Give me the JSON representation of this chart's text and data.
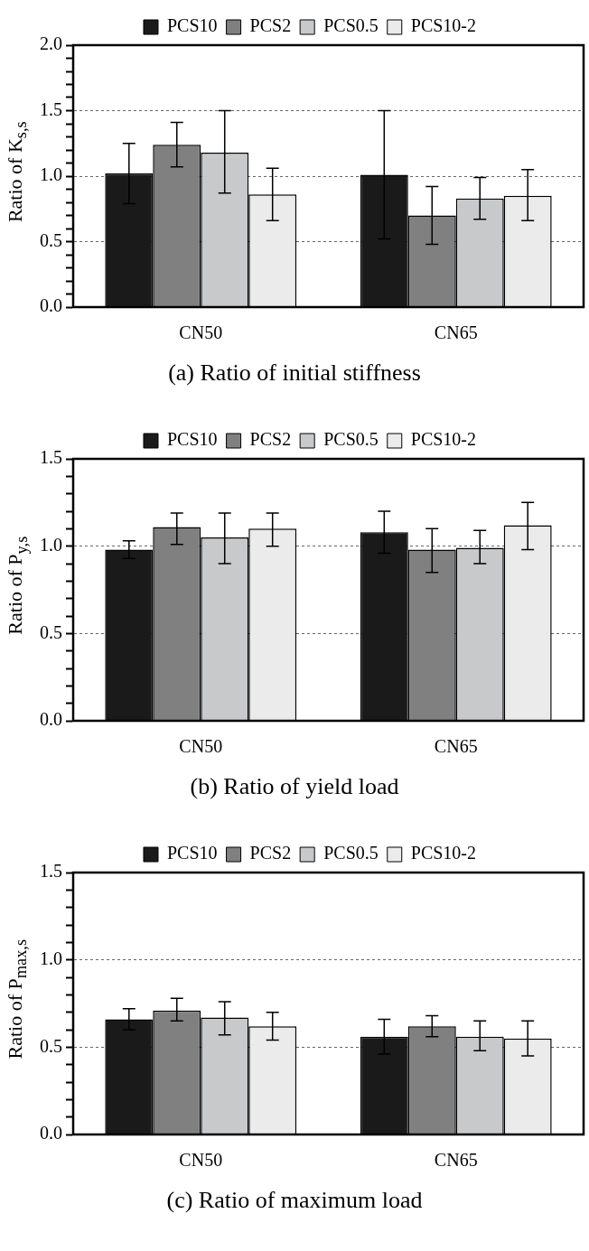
{
  "chart_data": [
    {
      "type": "bar",
      "title": "(a) Ratio of initial stiffness",
      "ylabel": "Ratio of K$_{s,s}$",
      "categories": [
        "CN50",
        "CN65"
      ],
      "series": [
        {
          "name": "PCS10",
          "color": "#1a1a1a",
          "values": [
            1.02,
            1.01
          ],
          "errors": [
            0.23,
            0.49
          ]
        },
        {
          "name": "PCS2",
          "color": "#808080",
          "values": [
            1.24,
            0.7
          ],
          "errors": [
            [
              1.07,
              1.41
            ],
            [
              0.48,
              0.92
            ]
          ]
        },
        {
          "name": "PCS0.5",
          "color": "#c8c9cb",
          "values": [
            1.18,
            0.83
          ],
          "errors": [
            [
              0.87,
              1.5
            ],
            [
              0.67,
              0.99
            ]
          ]
        },
        {
          "name": "PCS10-2",
          "color": "#ebebeb",
          "values": [
            0.86,
            0.85
          ],
          "errors": [
            [
              0.66,
              1.06
            ],
            [
              0.66,
              1.05
            ]
          ]
        }
      ],
      "ylim": [
        0,
        2
      ],
      "yticks": [
        "0.0",
        {
          "value": 0.1,
          "label": null
        },
        {
          "value": 0.2,
          "label": null
        },
        {
          "value": 0.3,
          "label": null
        },
        {
          "value": 0.4,
          "label": null
        },
        {
          "value": 0.5,
          "label": "0.5"
        },
        {
          "value": 0.6,
          "label": null
        },
        {
          "value": 0.7,
          "label": null
        },
        {
          "value": 0.8,
          "label": null
        },
        {
          "value": 0.9,
          "label": null
        },
        {
          "value": 1,
          "label": "1.0"
        },
        {
          "value": 1.1,
          "label": null
        },
        {
          "value": 1.2,
          "label": null
        },
        {
          "value": 1.3,
          "label": null
        },
        {
          "value": 1.4,
          "label": null
        },
        {
          "value": 1.5,
          "label": "1.5"
        },
        {
          "value": 1.6,
          "label": null
        },
        {
          "value": 1.7,
          "label": null
        },
        {
          "value": 1.8,
          "label": null
        },
        {
          "value": 1.9,
          "label": null
        },
        {
          "value": 2,
          "label": "2.0"
        }
      ],
      "grid": "y",
      "legend": "top"
    },
    {
      "type": "bar",
      "title": "(b) Ratio of yield load",
      "ylabel": "Ratio of P$_{y,s}$",
      "categories": [
        "CN50",
        "CN65"
      ],
      "series": [
        {
          "name": "PCS10",
          "color": "#1a1a1a",
          "values": [
            0.98,
            1.08
          ],
          "errors": [
            0.05,
            0.12
          ]
        },
        {
          "name": "PCS2",
          "color": "#808080",
          "values": [
            1.11,
            0.98
          ],
          "errors": [
            [
              1.01,
              1.19
            ],
            [
              0.85,
              1.1
            ]
          ]
        },
        {
          "name": "PCS0.5",
          "color": "#c8c9cb",
          "values": [
            1.05,
            0.99
          ],
          "errors": [
            [
              0.9,
              1.19
            ],
            [
              0.9,
              1.09
            ]
          ]
        },
        {
          "name": "PCS10-2",
          "color": "#ebebeb",
          "values": [
            1.1,
            1.12
          ],
          "errors": [
            [
              1.0,
              1.19
            ],
            [
              0.98,
              1.25
            ]
          ]
        }
      ],
      "ylim": [
        0,
        1.5
      ],
      "yticks": [
        {
          "value": 0,
          "label": "0.0"
        },
        {
          "value": 0.1,
          "label": null
        },
        {
          "value": 0.2,
          "label": null
        },
        {
          "value": 0.3,
          "label": null
        },
        {
          "value": 0.4,
          "label": null
        },
        {
          "value": 0.5,
          "label": "0.5"
        },
        {
          "value": 0.6,
          "label": null
        },
        {
          "value": 0.7,
          "label": null
        },
        {
          "value": 0.8,
          "label": null
        },
        {
          "value": 0.9,
          "label": null
        },
        {
          "value": 1,
          "label": "1.0"
        },
        {
          "value": 1.1,
          "label": null
        },
        {
          "value": 1.2,
          "label": null
        },
        {
          "value": 1.3,
          "label": null
        },
        {
          "value": 1.4,
          "label": null
        },
        {
          "value": 1.5,
          "label": "1.5"
        }
      ],
      "grid": "y",
      "legend": "top"
    },
    {
      "type": "bar",
      "title": "(c) Ratio of maximum load",
      "ylabel": "Ratio of P$_{max,s}$",
      "categories": [
        "CN50",
        "CN65"
      ],
      "series": [
        {
          "name": "PCS10",
          "color": "#1a1a1a",
          "values": [
            0.66,
            0.56
          ],
          "errors": [
            0.06,
            0.1
          ]
        },
        {
          "name": "PCS2",
          "color": "#808080",
          "values": [
            0.71,
            0.62
          ],
          "errors": [
            [
              0.65,
              0.78
            ],
            [
              0.56,
              0.68
            ]
          ]
        },
        {
          "name": "PCS0.5",
          "color": "#c8c9cb",
          "values": [
            0.67,
            0.56
          ],
          "errors": [
            [
              0.57,
              0.76
            ],
            [
              0.48,
              0.65
            ]
          ]
        },
        {
          "name": "PCS10-2",
          "color": "#ebebeb",
          "values": [
            0.62,
            0.55
          ],
          "errors": [
            [
              0.54,
              0.7
            ],
            [
              0.45,
              0.65
            ]
          ]
        }
      ],
      "ylim": [
        0,
        1.5
      ],
      "yticks": [
        {
          "value": 0,
          "label": "0.0"
        },
        {
          "value": 0.1,
          "label": null
        },
        {
          "value": 0.2,
          "label": null
        },
        {
          "value": 0.3,
          "label": null
        },
        {
          "value": 0.4,
          "label": null
        },
        {
          "value": 0.5,
          "label": "0.5"
        },
        {
          "value": 0.6,
          "label": null
        },
        {
          "value": 0.7,
          "label": null
        },
        {
          "value": 0.8,
          "label": null
        },
        {
          "value": 0.9,
          "label": null
        },
        {
          "value": 1,
          "label": "1.0"
        },
        {
          "value": 1.1,
          "label": null
        },
        {
          "value": 1.2,
          "label": null
        },
        {
          "value": 1.3,
          "label": null
        },
        {
          "value": 1.4,
          "label": null
        },
        {
          "value": 1.5,
          "label": "1.5"
        }
      ],
      "grid": "y",
      "legend": "top"
    }
  ]
}
